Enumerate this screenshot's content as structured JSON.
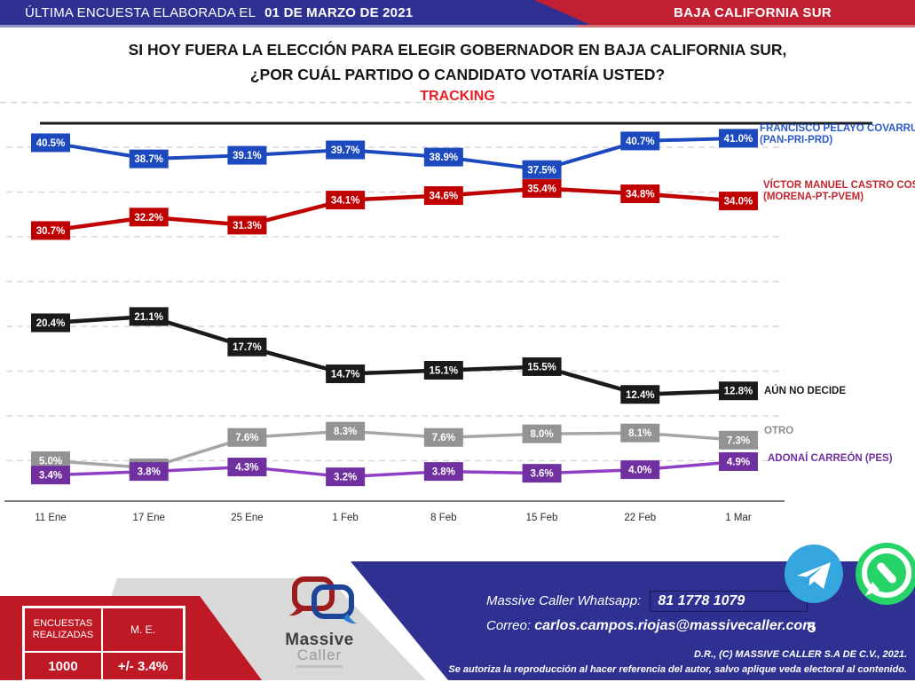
{
  "header": {
    "left_prefix": "ÚLTIMA ENCUESTA ELABORADA EL",
    "left_date": "01 DE MARZO DE 2021",
    "region": "BAJA CALIFORNIA SUR"
  },
  "title": {
    "line1": "SI HOY FUERA LA ELECCIÓN PARA ELEGIR GOBERNADOR EN BAJA CALIFORNIA SUR,",
    "line2": "¿POR CUÁL PARTIDO O CANDIDATO VOTARÍA USTED?",
    "tracking": "TRACKING"
  },
  "chart_data": {
    "type": "line",
    "title": "TRACKING",
    "xlabel": "",
    "ylabel": "",
    "value_suffix": "%",
    "ylim": [
      0,
      46
    ],
    "grid": "horizontal-dashed",
    "grid_values": [
      5,
      10,
      15,
      20,
      25,
      30,
      35,
      40,
      45
    ],
    "legend_position": "right",
    "categories": [
      "11 Ene",
      "17 Ene",
      "25 Ene",
      "1 Feb",
      "8 Feb",
      "15 Feb",
      "22 Feb",
      "1 Mar"
    ],
    "series": [
      {
        "name": "FRANCISCO PELAYO COVARRUBIAS",
        "party": "(PAN-PRI-PRD)",
        "color": "#1C49BE",
        "line_color": "#1C49BE",
        "label_color": "#2B59C8",
        "values": [
          40.5,
          38.7,
          39.1,
          39.7,
          38.9,
          37.5,
          40.7,
          41.0
        ]
      },
      {
        "name": "VÍCTOR MANUEL CASTRO COSÍO",
        "party": "(MORENA-PT-PVEM)",
        "color": "#C00000",
        "line_color": "#C00000",
        "label_color": "#C1272D",
        "values": [
          30.7,
          32.2,
          31.3,
          34.1,
          34.6,
          35.4,
          34.8,
          34.0
        ]
      },
      {
        "name": "AÚN NO DECIDE",
        "party": "",
        "color": "#1A1A1A",
        "line_color": "#1A1A1A",
        "label_color": "#1A1A1A",
        "values": [
          20.4,
          21.1,
          17.7,
          14.7,
          15.1,
          15.5,
          12.4,
          12.8
        ]
      },
      {
        "name": "OTRO",
        "party": "",
        "color": "#939393",
        "line_color": "#A6A6A6",
        "label_color": "#8F8F8F",
        "values": [
          5.0,
          4.2,
          7.6,
          8.3,
          7.6,
          8.0,
          8.1,
          7.3
        ]
      },
      {
        "name": "ADONAÍ CARREÓN (PES)",
        "party": "",
        "color": "#7030A0",
        "line_color": "#8E3FC4",
        "label_color": "#7030A0",
        "values": [
          3.4,
          3.8,
          4.3,
          3.2,
          3.8,
          3.6,
          4.0,
          4.9
        ]
      }
    ]
  },
  "footer": {
    "sample": {
      "header_line1": "ENCUESTAS",
      "header_line2": "REALIZADAS",
      "me_header": "M. E.",
      "n_value": "1000",
      "me_value": "+/- 3.4%"
    },
    "logo": {
      "line1": "Massive",
      "line2": "Caller"
    },
    "contact": {
      "whatsapp_label": "Massive Caller Whatsapp:",
      "whatsapp_number": "81 1778 1079",
      "email_label": "Correo:",
      "email": "carlos.campos.riojas@massivecaller.com",
      "page": "5",
      "copyright1": "D.R., (C) MASSIVE CALLER S.A DE C.V., 2021.",
      "copyright2": "Se autoriza la reproducción al hacer referencia del autor, salvo aplique veda electoral al contenido."
    }
  },
  "colors": {
    "header_navy": "#2E3192",
    "header_red": "#C22032",
    "footer_navy": "#2E3192",
    "footer_red": "#C01926",
    "footer_gray": "#D9D9D9",
    "tracking_red": "#EC1C24",
    "telegram_blue": "#35A6DE",
    "whatsapp_green": "#25D366"
  }
}
